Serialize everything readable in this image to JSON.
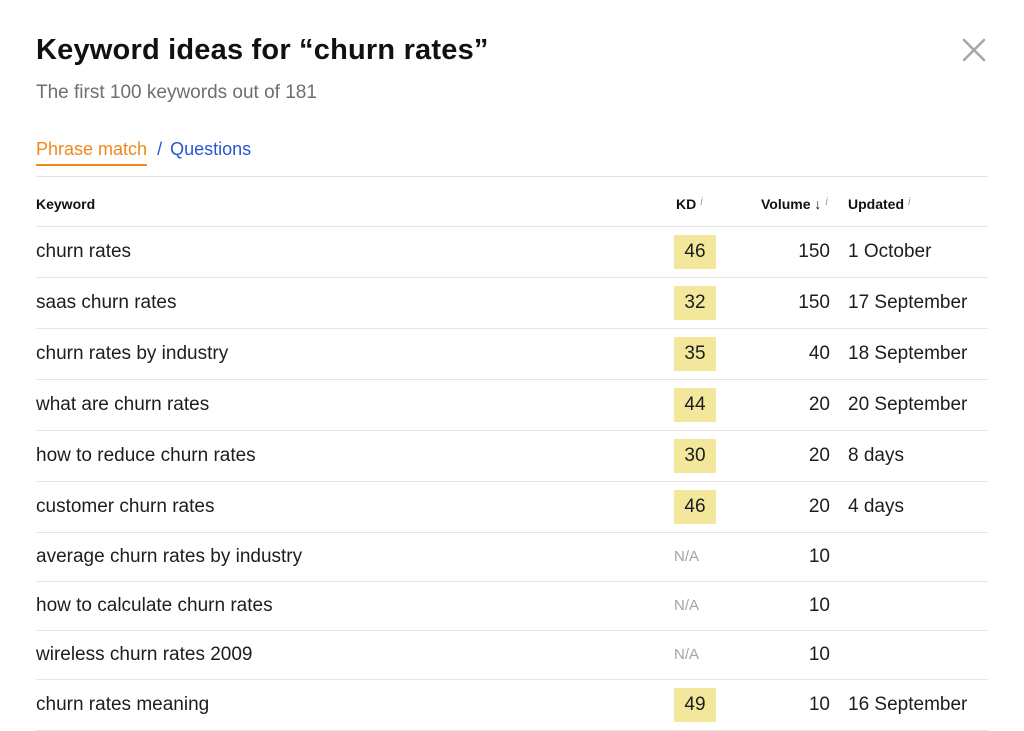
{
  "header": {
    "title": "Keyword ideas for “churn rates”",
    "subtitle": "The first 100 keywords out of 181"
  },
  "tabs": {
    "phrase_match": "Phrase match",
    "separator": "/",
    "questions": "Questions",
    "active": "Phrase match",
    "active_color": "#f0881a",
    "link_color": "#2a54d6"
  },
  "table": {
    "columns": {
      "keyword": "Keyword",
      "kd": "KD",
      "volume": "Volume ↓",
      "updated": "Updated",
      "info_glyph": "i"
    },
    "kd_highlight_color": "#f2e79a",
    "rows": [
      {
        "keyword": "churn rates",
        "kd": "46",
        "volume": "150",
        "updated": "1 October"
      },
      {
        "keyword": "saas churn rates",
        "kd": "32",
        "volume": "150",
        "updated": "17 September"
      },
      {
        "keyword": "churn rates by industry",
        "kd": "35",
        "volume": "40",
        "updated": "18 September"
      },
      {
        "keyword": "what are churn rates",
        "kd": "44",
        "volume": "20",
        "updated": "20 September"
      },
      {
        "keyword": "how to reduce churn rates",
        "kd": "30",
        "volume": "20",
        "updated": "8 days"
      },
      {
        "keyword": "customer churn rates",
        "kd": "46",
        "volume": "20",
        "updated": "4 days"
      },
      {
        "keyword": "average churn rates by industry",
        "kd": "N/A",
        "volume": "10",
        "updated": ""
      },
      {
        "keyword": "how to calculate churn rates",
        "kd": "N/A",
        "volume": "10",
        "updated": ""
      },
      {
        "keyword": "wireless churn rates 2009",
        "kd": "N/A",
        "volume": "10",
        "updated": ""
      },
      {
        "keyword": "churn rates meaning",
        "kd": "49",
        "volume": "10",
        "updated": "16 September"
      }
    ]
  },
  "icons": {
    "close": "close-icon"
  }
}
